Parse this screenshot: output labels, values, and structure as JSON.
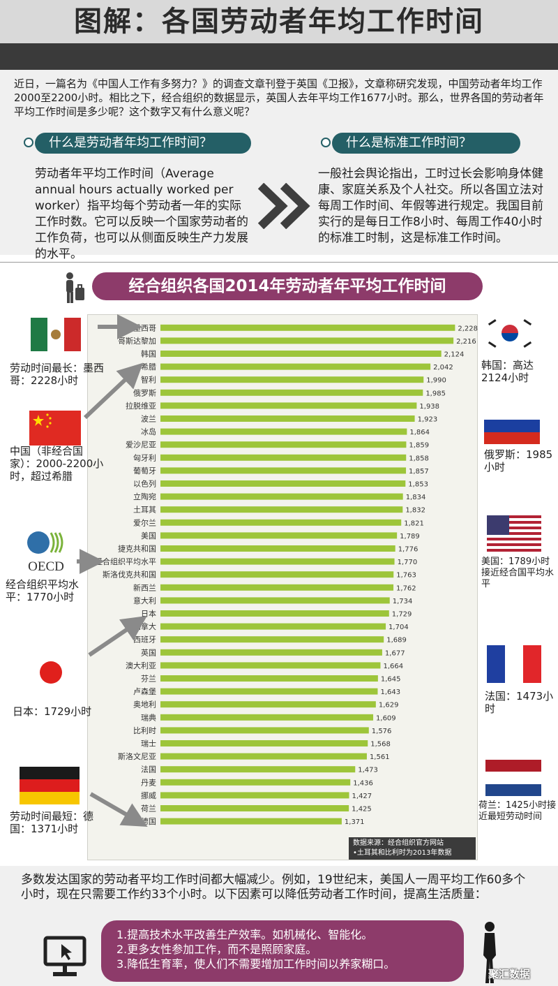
{
  "title": "图解：各国劳动者年均工作时间",
  "intro": "近日，一篇名为《中国人工作有多努力？》的调查文章刊登于英国《卫报》，文章称研究发现，中国劳动者年均工作2000至2200小时。相比之下，经合组织的数据显示，英国人去年平均工作1677小时。那么，世界各国的劳动者年平均工作时间是多少呢？这个数字又有什么意义呢？",
  "left_section": {
    "heading": "什么是劳动者年均工作时间？",
    "body": "劳动者年平均工作时间（Average annual hours actually worked per worker）指平均每个劳动者一年的实际工作时数。它可以反映一个国家劳动者的工作负荷，也可以从侧面反映生产力发展的水平。"
  },
  "right_section": {
    "heading": "什么是标准工作时间？",
    "body": "一般社会舆论指出，工时过长会影响身体健康、家庭关系及个人社交。所以各国立法对每周工作时间、年假等进行规定。我国目前实行的是每日工作8小时、每周工作40小时的标准工时制，这是标准工作时间。"
  },
  "chart_header": "经合组织各国2014年劳动者年平均工作时间",
  "chart_data": {
    "type": "bar",
    "orientation": "horizontal",
    "title": "经合组织各国2014年劳动者年平均工作时间",
    "categories": [
      "墨西哥",
      "哥斯达黎加",
      "韩国",
      "希腊",
      "智利",
      "俄罗斯",
      "拉脱维亚",
      "波兰",
      "冰岛",
      "爱沙尼亚",
      "匈牙利",
      "葡萄牙",
      "以色列",
      "立陶宛",
      "土耳其",
      "爱尔兰",
      "美国",
      "捷克共和国",
      "经合组织平均水平",
      "斯洛伐克共和国",
      "新西兰",
      "意大利",
      "日本",
      "加拿大",
      "西班牙",
      "英国",
      "澳大利亚",
      "芬兰",
      "卢森堡",
      "奥地利",
      "瑞典",
      "比利时",
      "瑞士",
      "斯洛文尼亚",
      "法国",
      "丹麦",
      "挪威",
      "荷兰",
      "德国"
    ],
    "values": [
      2228,
      2216,
      2124,
      2042,
      1990,
      1985,
      1938,
      1923,
      1864,
      1859,
      1858,
      1857,
      1853,
      1834,
      1832,
      1821,
      1789,
      1776,
      1770,
      1763,
      1762,
      1734,
      1729,
      1704,
      1689,
      1677,
      1664,
      1645,
      1643,
      1629,
      1609,
      1576,
      1568,
      1561,
      1473,
      1436,
      1427,
      1425,
      1371
    ],
    "value_labels": [
      "2,228",
      "2,216",
      "2,124",
      "2,042",
      "1,990",
      "1,985",
      "1,938",
      "1,923",
      "1,864",
      "1,859",
      "1,858",
      "1,857",
      "1,853",
      "1,834",
      "1,832",
      "1,821",
      "1,789",
      "1,776",
      "1,770",
      "1,763",
      "1,762",
      "1,734",
      "1,729",
      "1,704",
      "1,689",
      "1,677",
      "1,664",
      "1,645",
      "1,643",
      "1,629",
      "1,609",
      "1,576",
      "1,568",
      "1,561",
      "1,473",
      "1,436",
      "1,427",
      "1,425",
      "1,371"
    ],
    "xlim": [
      0,
      2400
    ],
    "bar_color": "#9dc53a"
  },
  "left_labels": {
    "mexico": "劳动时间最长：墨西哥：2228小时",
    "china": "中国（非经合国家）：2000-2200小时，超过希腊",
    "oecd": "经合组织平均水平：1770小时",
    "oecd_logo": "OECD",
    "japan": "日本：1729小时",
    "germany": "劳动时间最短：德国：1371小时"
  },
  "right_labels": {
    "korea": "韩国：高达2124小时",
    "russia": "俄罗斯：1985小时",
    "usa": "美国：1789小时接近经合国平均水平",
    "france": "法国：1473小时",
    "netherlands": "荷兰：1425小时接近最短劳动时间"
  },
  "source": {
    "line1": "数据来源：经合组织官方网站",
    "line2": "•土耳其和比利时为2013年数据"
  },
  "outro": "多数发达国家的劳动者平均工作时间都大幅减少。例如，19世纪末，美国人一周平均工作60多个小时，现在只需要工作约33个小时。以下因素可以降低劳动者工作时间，提高生活质量：",
  "factors": [
    "1.提高技术水平改善生产效率。如机械化、智能化。",
    "2.更多女性参加工作，而不是照顾家庭。",
    "3.降低生育率，使人们不需要增加工作时间以养家糊口。"
  ],
  "brand": "聚汇数据",
  "colors": {
    "accent_teal": "#245f66",
    "accent_plum": "#8d3b6a",
    "bar_green": "#9dc53a"
  }
}
